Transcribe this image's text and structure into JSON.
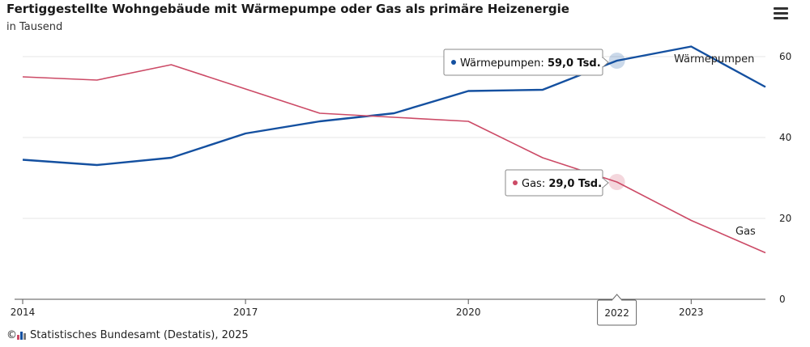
{
  "header": {
    "title": "Fertiggestellte Wohngebäude mit Wärmepumpe oder Gas als primäre Heizenergie",
    "subtitle": "in Tausend"
  },
  "source": {
    "copyright": "©",
    "text": "Statistisches Bundesamt (Destatis), 2025"
  },
  "colors": {
    "waermepumpen": "#1450a0",
    "gas": "#cc4a66",
    "grid": "#e4e4e4"
  },
  "menu": {
    "icon": "hamburger-menu-icon"
  },
  "chart_data": {
    "type": "line",
    "x": [
      2014,
      2015,
      2016,
      2017,
      2018,
      2019,
      2020,
      2021,
      2022,
      2023,
      2024
    ],
    "x_tick_labels": [
      {
        "x": 2014,
        "label": "2014"
      },
      {
        "x": 2017,
        "label": "2017"
      },
      {
        "x": 2020,
        "label": "2020"
      },
      {
        "x": 2023,
        "label": "2023"
      }
    ],
    "y_ticks": [
      0,
      20,
      40,
      60
    ],
    "ylim": [
      0,
      65
    ],
    "y_axis_side": "right",
    "grid": true,
    "series": [
      {
        "name": "Wärmepumpen",
        "values": [
          34.5,
          33.2,
          35.0,
          41.0,
          44.0,
          46.0,
          51.5,
          51.8,
          59.0,
          62.5,
          52.5
        ]
      },
      {
        "name": "Gas",
        "values": [
          55.0,
          54.2,
          58.0,
          52.0,
          46.0,
          45.0,
          44.0,
          35.0,
          29.0,
          19.5,
          11.5
        ]
      }
    ],
    "highlight": {
      "x": 2022,
      "x_label": "2022",
      "tooltips": [
        {
          "series": "Wärmepumpen",
          "label": "Wärmepumpen:",
          "value": "59,0 Tsd."
        },
        {
          "series": "Gas",
          "label": "Gas:",
          "value": "29,0 Tsd."
        }
      ]
    }
  }
}
